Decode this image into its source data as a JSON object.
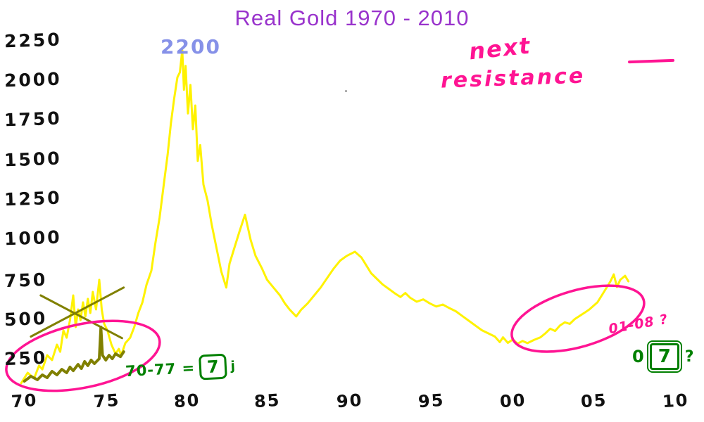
{
  "title": {
    "text": "Real Gold 1970 - 2010"
  },
  "palette": {
    "title_purple": "#9933cc",
    "gold_line": "#fff200",
    "olive_line": "#808000",
    "pink": "#ff1493",
    "green": "#008000",
    "blue_label": "#8691e8",
    "ink": "#111111",
    "background": "#ffffff"
  },
  "chart_data": {
    "type": "line",
    "title": "Real Gold 1970 - 2010",
    "xlabel": "",
    "ylabel": "",
    "xlim": [
      1970,
      2010
    ],
    "ylim": [
      0,
      2400
    ],
    "grid": false,
    "legend_position": "top-right",
    "x_ticks": [
      {
        "year": 1970,
        "label": "70"
      },
      {
        "year": 1975,
        "label": "75"
      },
      {
        "year": 1980,
        "label": "80"
      },
      {
        "year": 1985,
        "label": "85"
      },
      {
        "year": 1990,
        "label": "90"
      },
      {
        "year": 1995,
        "label": "95"
      },
      {
        "year": 2000,
        "label": "00"
      },
      {
        "year": 2005,
        "label": "05"
      },
      {
        "year": 2010,
        "label": "10"
      }
    ],
    "y_ticks": [
      {
        "value": 2250,
        "label": "2250"
      },
      {
        "value": 2000,
        "label": "2000"
      },
      {
        "value": 1750,
        "label": "1750"
      },
      {
        "value": 1500,
        "label": "1500"
      },
      {
        "value": 1250,
        "label": "1250"
      },
      {
        "value": 1000,
        "label": "1000"
      },
      {
        "value": 750,
        "label": "750"
      },
      {
        "value": 500,
        "label": "500"
      },
      {
        "value": 250,
        "label": "250"
      }
    ],
    "series": [
      {
        "name": "real-gold-price",
        "color": "#fff200",
        "width": 3,
        "points": [
          [
            1970.0,
            95
          ],
          [
            1970.4,
            161
          ],
          [
            1970.8,
            126
          ],
          [
            1971.1,
            206
          ],
          [
            1971.3,
            183
          ],
          [
            1971.6,
            272
          ],
          [
            1971.9,
            241
          ],
          [
            1972.2,
            339
          ],
          [
            1972.4,
            294
          ],
          [
            1972.6,
            428
          ],
          [
            1972.8,
            383
          ],
          [
            1973.0,
            494
          ],
          [
            1973.2,
            650
          ],
          [
            1973.35,
            450
          ],
          [
            1973.5,
            561
          ],
          [
            1973.65,
            494
          ],
          [
            1973.8,
            606
          ],
          [
            1973.95,
            517
          ],
          [
            1974.1,
            628
          ],
          [
            1974.25,
            539
          ],
          [
            1974.4,
            672
          ],
          [
            1974.6,
            561
          ],
          [
            1974.8,
            748
          ],
          [
            1974.95,
            561
          ],
          [
            1975.1,
            472
          ],
          [
            1975.3,
            428
          ],
          [
            1975.55,
            339
          ],
          [
            1975.8,
            281
          ],
          [
            1976.0,
            312
          ],
          [
            1976.15,
            272
          ],
          [
            1976.4,
            348
          ],
          [
            1976.7,
            383
          ],
          [
            1976.95,
            450
          ],
          [
            1977.2,
            539
          ],
          [
            1977.45,
            606
          ],
          [
            1977.7,
            717
          ],
          [
            1978.0,
            806
          ],
          [
            1978.25,
            983
          ],
          [
            1978.5,
            1139
          ],
          [
            1978.75,
            1339
          ],
          [
            1979.0,
            1539
          ],
          [
            1979.2,
            1739
          ],
          [
            1979.4,
            1894
          ],
          [
            1979.6,
            2028
          ],
          [
            1979.75,
            2060
          ],
          [
            1979.9,
            2200
          ],
          [
            1980.0,
            1950
          ],
          [
            1980.1,
            2100
          ],
          [
            1980.25,
            1800
          ],
          [
            1980.4,
            1980
          ],
          [
            1980.55,
            1700
          ],
          [
            1980.7,
            1850
          ],
          [
            1980.85,
            1500
          ],
          [
            1981.0,
            1600
          ],
          [
            1981.2,
            1350
          ],
          [
            1981.45,
            1250
          ],
          [
            1981.7,
            1100
          ],
          [
            1982.0,
            950
          ],
          [
            1982.3,
            800
          ],
          [
            1982.6,
            700
          ],
          [
            1982.8,
            850
          ],
          [
            1983.1,
            950
          ],
          [
            1983.4,
            1050
          ],
          [
            1983.75,
            1160
          ],
          [
            1984.1,
            1000
          ],
          [
            1984.4,
            900
          ],
          [
            1984.8,
            820
          ],
          [
            1985.1,
            750
          ],
          [
            1985.5,
            700
          ],
          [
            1985.9,
            650
          ],
          [
            1986.2,
            600
          ],
          [
            1986.5,
            560
          ],
          [
            1986.9,
            517
          ],
          [
            1987.2,
            560
          ],
          [
            1987.6,
            600
          ],
          [
            1988.0,
            650
          ],
          [
            1988.4,
            700
          ],
          [
            1988.8,
            760
          ],
          [
            1989.2,
            820
          ],
          [
            1989.6,
            870
          ],
          [
            1990.0,
            900
          ],
          [
            1990.5,
            926
          ],
          [
            1990.9,
            890
          ],
          [
            1991.2,
            840
          ],
          [
            1991.5,
            790
          ],
          [
            1991.9,
            750
          ],
          [
            1992.2,
            720
          ],
          [
            1992.6,
            690
          ],
          [
            1993.0,
            660
          ],
          [
            1993.3,
            640
          ],
          [
            1993.6,
            665
          ],
          [
            1993.9,
            635
          ],
          [
            1994.3,
            610
          ],
          [
            1994.7,
            625
          ],
          [
            1995.1,
            600
          ],
          [
            1995.5,
            580
          ],
          [
            1995.9,
            592
          ],
          [
            1996.3,
            570
          ],
          [
            1996.7,
            550
          ],
          [
            1997.1,
            520
          ],
          [
            1997.5,
            490
          ],
          [
            1997.9,
            460
          ],
          [
            1998.3,
            430
          ],
          [
            1998.7,
            410
          ],
          [
            1999.1,
            390
          ],
          [
            1999.4,
            355
          ],
          [
            1999.6,
            385
          ],
          [
            1999.9,
            350
          ],
          [
            2000.2,
            372
          ],
          [
            2000.5,
            345
          ],
          [
            2000.8,
            362
          ],
          [
            2001.1,
            348
          ],
          [
            2001.5,
            368
          ],
          [
            2001.9,
            385
          ],
          [
            2002.2,
            410
          ],
          [
            2002.5,
            440
          ],
          [
            2002.8,
            425
          ],
          [
            2003.1,
            460
          ],
          [
            2003.4,
            480
          ],
          [
            2003.7,
            470
          ],
          [
            2004.0,
            500
          ],
          [
            2004.3,
            520
          ],
          [
            2004.6,
            540
          ],
          [
            2004.9,
            561
          ],
          [
            2005.4,
            606
          ],
          [
            2005.8,
            672
          ],
          [
            2006.2,
            739
          ],
          [
            2006.4,
            783
          ],
          [
            2006.6,
            703
          ],
          [
            2006.8,
            748
          ],
          [
            2007.1,
            774
          ],
          [
            2007.3,
            739
          ]
        ]
      },
      {
        "name": "olive-overlay-scribble",
        "color": "#808000",
        "width": 4,
        "points": [
          [
            1970.2,
            108
          ],
          [
            1970.6,
            139
          ],
          [
            1971.0,
            117
          ],
          [
            1971.3,
            148
          ],
          [
            1971.6,
            130
          ],
          [
            1971.9,
            170
          ],
          [
            1972.2,
            148
          ],
          [
            1972.5,
            183
          ],
          [
            1972.8,
            161
          ],
          [
            1973.0,
            197
          ],
          [
            1973.2,
            174
          ],
          [
            1973.5,
            214
          ],
          [
            1973.7,
            188
          ],
          [
            1973.9,
            232
          ],
          [
            1974.1,
            206
          ],
          [
            1974.3,
            241
          ],
          [
            1974.5,
            219
          ],
          [
            1974.8,
            250
          ],
          [
            1974.9,
            450
          ],
          [
            1975.0,
            272
          ],
          [
            1975.2,
            241
          ],
          [
            1975.4,
            272
          ],
          [
            1975.6,
            250
          ],
          [
            1975.8,
            281
          ],
          [
            1976.1,
            263
          ],
          [
            1976.3,
            294
          ]
        ]
      },
      {
        "name": "olive-cross-line-a",
        "color": "#808000",
        "width": 3,
        "points": [
          [
            1970.6,
            390
          ],
          [
            1976.3,
            700
          ]
        ]
      },
      {
        "name": "olive-cross-line-b",
        "color": "#808000",
        "width": 3,
        "points": [
          [
            1971.2,
            650
          ],
          [
            1976.2,
            380
          ]
        ]
      }
    ],
    "highlight_ellipses": [
      {
        "name": "base-pattern-1970-77",
        "color": "#ff1493",
        "center_year": 1973.8,
        "center_value": 268,
        "radius_years": 4.8,
        "radius_value": 200,
        "rotation_deg": -12
      },
      {
        "name": "base-pattern-2001-08",
        "color": "#ff1493",
        "center_year": 2004.2,
        "center_value": 503,
        "radius_years": 4.2,
        "radius_value": 178,
        "rotation_deg": -16
      }
    ],
    "annotations": {
      "peak_price_label": "2200",
      "next_resistance_line1": "next",
      "next_resistance_line2": "resistance",
      "left_range_note": "70-77 =",
      "left_range_boxed": "7",
      "left_range_suffix": "j",
      "right_range_note": "01-08 ?",
      "right_boxed_prefix": "0",
      "right_boxed_value": "7",
      "right_boxed_suffix": "?"
    }
  }
}
